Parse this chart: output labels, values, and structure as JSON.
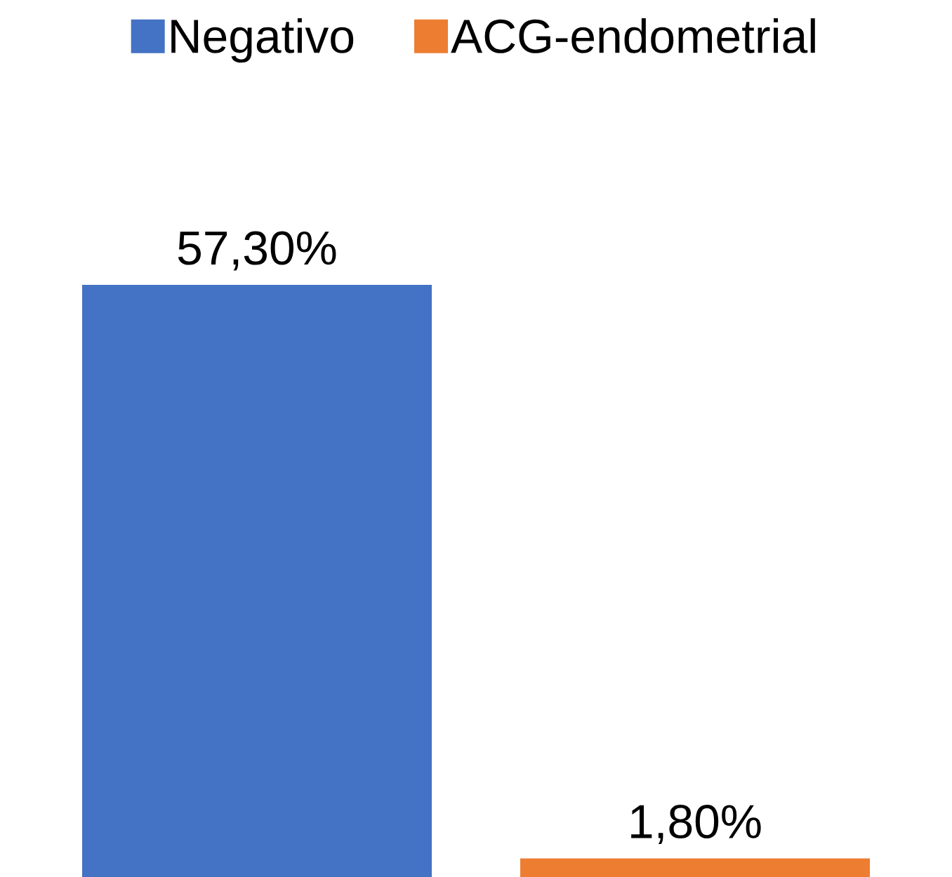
{
  "chart_data": {
    "type": "bar",
    "categories": [
      null
    ],
    "legend": "top",
    "series": [
      {
        "name": "Negativo",
        "color": "#4472c4",
        "values": [
          57.3
        ],
        "value_labels": [
          "57,30%"
        ]
      },
      {
        "name": "ACG-endometrial",
        "color": "#ed7d31",
        "values": [
          1.8
        ],
        "value_labels": [
          "1,80%"
        ]
      }
    ]
  }
}
